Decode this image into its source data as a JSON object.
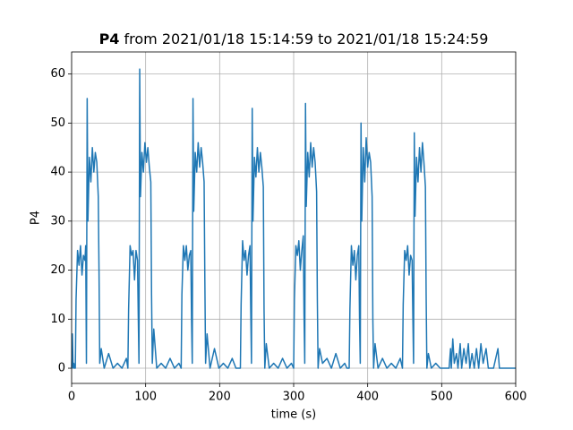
{
  "chart_data": {
    "type": "line",
    "title": {
      "name": "P4",
      "range": "from 2021/01/18 15:14:59 to 2021/01/18 15:24:59"
    },
    "xlabel": "time (s)",
    "ylabel": "P4",
    "xlim": [
      0,
      600
    ],
    "ylim": [
      -3.1,
      64.5
    ],
    "xticks": [
      0,
      100,
      200,
      300,
      400,
      500,
      600
    ],
    "yticks": [
      0,
      10,
      20,
      30,
      40,
      50,
      60
    ],
    "grid": true,
    "series": [
      {
        "name": "P4",
        "color": "#1f77b4",
        "x": [
          0,
          1,
          2,
          3,
          4,
          5,
          6,
          8,
          10,
          12,
          14,
          16,
          18,
          19,
          20,
          21,
          22,
          24,
          26,
          28,
          30,
          32,
          34,
          36,
          37,
          38,
          40,
          44,
          50,
          56,
          62,
          68,
          74,
          76,
          77,
          79,
          81,
          83,
          85,
          87,
          89,
          90,
          91,
          92,
          93,
          95,
          97,
          99,
          101,
          103,
          105,
          107,
          108,
          109,
          111,
          115,
          121,
          127,
          133,
          139,
          145,
          148,
          149,
          151,
          153,
          155,
          157,
          159,
          161,
          162,
          163,
          164,
          165,
          167,
          169,
          171,
          173,
          175,
          177,
          179,
          180,
          181,
          183,
          187,
          193,
          199,
          205,
          211,
          217,
          222,
          226,
          228,
          229,
          231,
          233,
          235,
          237,
          239,
          241,
          242,
          243,
          244,
          245,
          247,
          249,
          251,
          253,
          255,
          257,
          259,
          260,
          261,
          263,
          267,
          273,
          279,
          285,
          291,
          297,
          300,
          301,
          303,
          305,
          307,
          309,
          311,
          313,
          314,
          315,
          316,
          317,
          319,
          321,
          323,
          325,
          327,
          329,
          331,
          332,
          333,
          335,
          339,
          345,
          351,
          357,
          363,
          369,
          372,
          375,
          376,
          378,
          380,
          382,
          384,
          386,
          388,
          389,
          390,
          391,
          392,
          394,
          396,
          398,
          400,
          402,
          404,
          406,
          407,
          408,
          410,
          414,
          420,
          426,
          432,
          438,
          444,
          447,
          448,
          450,
          452,
          454,
          456,
          458,
          460,
          461,
          462,
          463,
          464,
          466,
          468,
          470,
          472,
          474,
          476,
          478,
          479,
          480,
          482,
          486,
          492,
          498,
          505,
          510,
          512,
          513,
          515,
          517,
          520,
          522,
          525,
          527,
          530,
          533,
          536,
          538,
          541,
          544,
          547,
          550,
          553,
          556,
          560,
          563,
          570,
          576,
          578,
          600
        ],
        "values": [
          0,
          7,
          0,
          1,
          0,
          0,
          14,
          24,
          21,
          25,
          19,
          23,
          22,
          25,
          1,
          55,
          30,
          43,
          38,
          45,
          40,
          44,
          42,
          35,
          20,
          1,
          4,
          0,
          3,
          0,
          1,
          0,
          2,
          0,
          12,
          25,
          23,
          24,
          18,
          24,
          22,
          11,
          1,
          61,
          35,
          44,
          40,
          46,
          42,
          45,
          41,
          38,
          15,
          1,
          8,
          0,
          1,
          0,
          2,
          0,
          1,
          0,
          15,
          25,
          22,
          25,
          20,
          23,
          24,
          10,
          1,
          55,
          32,
          44,
          40,
          46,
          41,
          45,
          42,
          38,
          18,
          1,
          7,
          0,
          4,
          0,
          1,
          0,
          2,
          0,
          0,
          0,
          13,
          26,
          22,
          24,
          19,
          23,
          25,
          12,
          1,
          53,
          30,
          43,
          39,
          45,
          40,
          44,
          41,
          37,
          12,
          0,
          5,
          0,
          1,
          0,
          2,
          0,
          1,
          0,
          14,
          25,
          23,
          26,
          20,
          24,
          27,
          11,
          1,
          54,
          33,
          44,
          39,
          46,
          41,
          45,
          42,
          36,
          14,
          0,
          4,
          1,
          2,
          0,
          3,
          0,
          1,
          0,
          0,
          12,
          25,
          21,
          24,
          18,
          23,
          25,
          10,
          1,
          50,
          30,
          45,
          38,
          47,
          41,
          44,
          42,
          35,
          10,
          0,
          5,
          0,
          2,
          0,
          1,
          0,
          2,
          0,
          13,
          24,
          22,
          25,
          19,
          23,
          22,
          11,
          1,
          48,
          31,
          43,
          38,
          45,
          40,
          46,
          42,
          37,
          15,
          0,
          3,
          0,
          1,
          0,
          0,
          0,
          4,
          0,
          6,
          1,
          3,
          0,
          5,
          0,
          4,
          1,
          5,
          0,
          3,
          0,
          4,
          0,
          5,
          1,
          4,
          0,
          0,
          4,
          0,
          0
        ]
      }
    ]
  }
}
